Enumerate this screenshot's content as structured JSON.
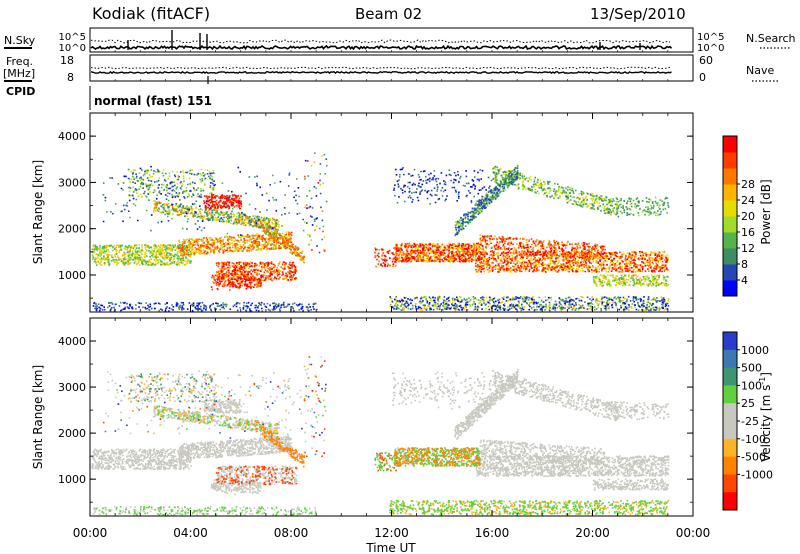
{
  "header": {
    "station": "Kodiak (fitACF)",
    "beam": "Beam 02",
    "date": "13/Sep/2010"
  },
  "left_labels": {
    "nsky": "N.Sky",
    "freq": "Freq.",
    "freq_unit": "[MHz]",
    "cpid": "CPID"
  },
  "right_labels": {
    "nsearch": "N.Search",
    "nave": "Nave"
  },
  "cpid_text": "normal (fast) 151",
  "colors": {
    "power": [
      "#0000ff",
      "#2646b4",
      "#3c8c64",
      "#52b44a",
      "#a0dc28",
      "#e6dc00",
      "#ffb400",
      "#ff7800",
      "#ff3c00",
      "#ff0000"
    ],
    "velocity": [
      "#2a3cc8",
      "#3c78b4",
      "#3c966e",
      "#60d040",
      "#c8c8c0",
      "#c8c8c0",
      "#ffb428",
      "#ff8200",
      "#ff4600",
      "#ff0000"
    ]
  },
  "chart_data": [
    {
      "type": "line",
      "name": "noise-panel",
      "ylabel_left": "N.Sky",
      "ylabel_right": "N.Search",
      "left_ticks": [
        "10^5",
        "10^0"
      ],
      "right_ticks": [
        "10^5",
        "10^0"
      ],
      "xlim": [
        0,
        24
      ]
    },
    {
      "type": "line",
      "name": "frequency-panel",
      "ylabel_left": "Freq. [MHz]",
      "ylabel_right": "Nave",
      "left_ticks": [
        "18",
        "8"
      ],
      "right_ticks": [
        "60",
        "0"
      ],
      "xlim": [
        0,
        24
      ]
    },
    {
      "type": "heatmap",
      "name": "power-panel",
      "ylabel": "Slant Range [km]",
      "yticks": [
        "1000",
        "2000",
        "3000",
        "4000"
      ],
      "ylim": [
        200,
        4500
      ],
      "xlim": [
        0,
        24
      ],
      "colorbar_label": "Power [dB]",
      "colorbar_ticks": [
        "4",
        "8",
        "12",
        "16",
        "20",
        "24",
        "28"
      ]
    },
    {
      "type": "heatmap",
      "name": "velocity-panel",
      "ylabel": "Slant Range [km]",
      "yticks": [
        "1000",
        "2000",
        "3000",
        "4000"
      ],
      "ylim": [
        200,
        4500
      ],
      "xlim": [
        0,
        24
      ],
      "colorbar_label": "Velocity",
      "colorbar_unit_base": "[m s",
      "colorbar_unit_exp": "-1",
      "colorbar_unit_close": "]",
      "colorbar_ticks": [
        "1000",
        "500",
        "100",
        "25",
        "-25",
        "-100",
        "-500",
        "-1000"
      ]
    }
  ],
  "xaxis": {
    "ticks": [
      "00:00",
      "04:00",
      "08:00",
      "12:00",
      "16:00",
      "20:00",
      "00:00"
    ],
    "label": "Time UT"
  }
}
